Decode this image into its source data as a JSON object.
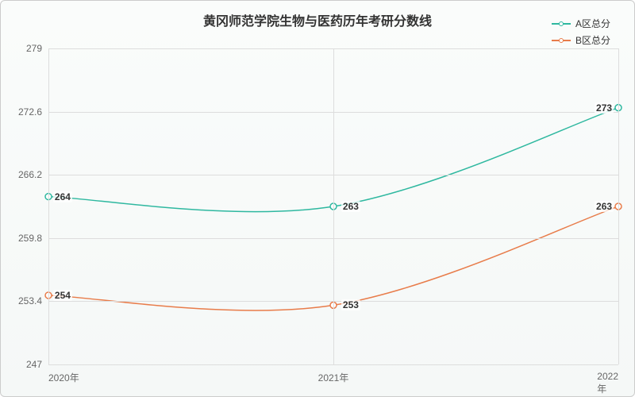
{
  "chart": {
    "type": "line",
    "title": "黄冈师范学院生物与医药历年考研分数线",
    "title_fontsize": 16,
    "title_color": "#333333",
    "background_gradient": [
      "#fafcfb",
      "#f5f8f7"
    ],
    "border_color": "#cccccc",
    "grid_color": "#dddddd",
    "label_color": "#666666",
    "label_fontsize": 12,
    "data_label_fontsize": 12,
    "data_label_color": "#333333",
    "line_width": 1.5,
    "marker_radius": 4,
    "marker_fill": "#ffffff",
    "smooth": true,
    "ylim": [
      247,
      279
    ],
    "yticks": [
      247,
      253.4,
      259.8,
      266.2,
      272.6,
      279
    ],
    "ytick_labels": [
      "247",
      "253.4",
      "259.8",
      "266.2",
      "272.6",
      "279"
    ],
    "categories": [
      "2020年",
      "2021年",
      "2022年"
    ],
    "legend_position": "top-right",
    "series": [
      {
        "name": "A区总分",
        "color": "#2fb8a0",
        "values": [
          264,
          263,
          273
        ],
        "value_labels": [
          "264",
          "263",
          "273"
        ]
      },
      {
        "name": "B区总分",
        "color": "#e87c4a",
        "values": [
          254,
          253,
          263
        ],
        "value_labels": [
          "254",
          "253",
          "263"
        ]
      }
    ]
  }
}
